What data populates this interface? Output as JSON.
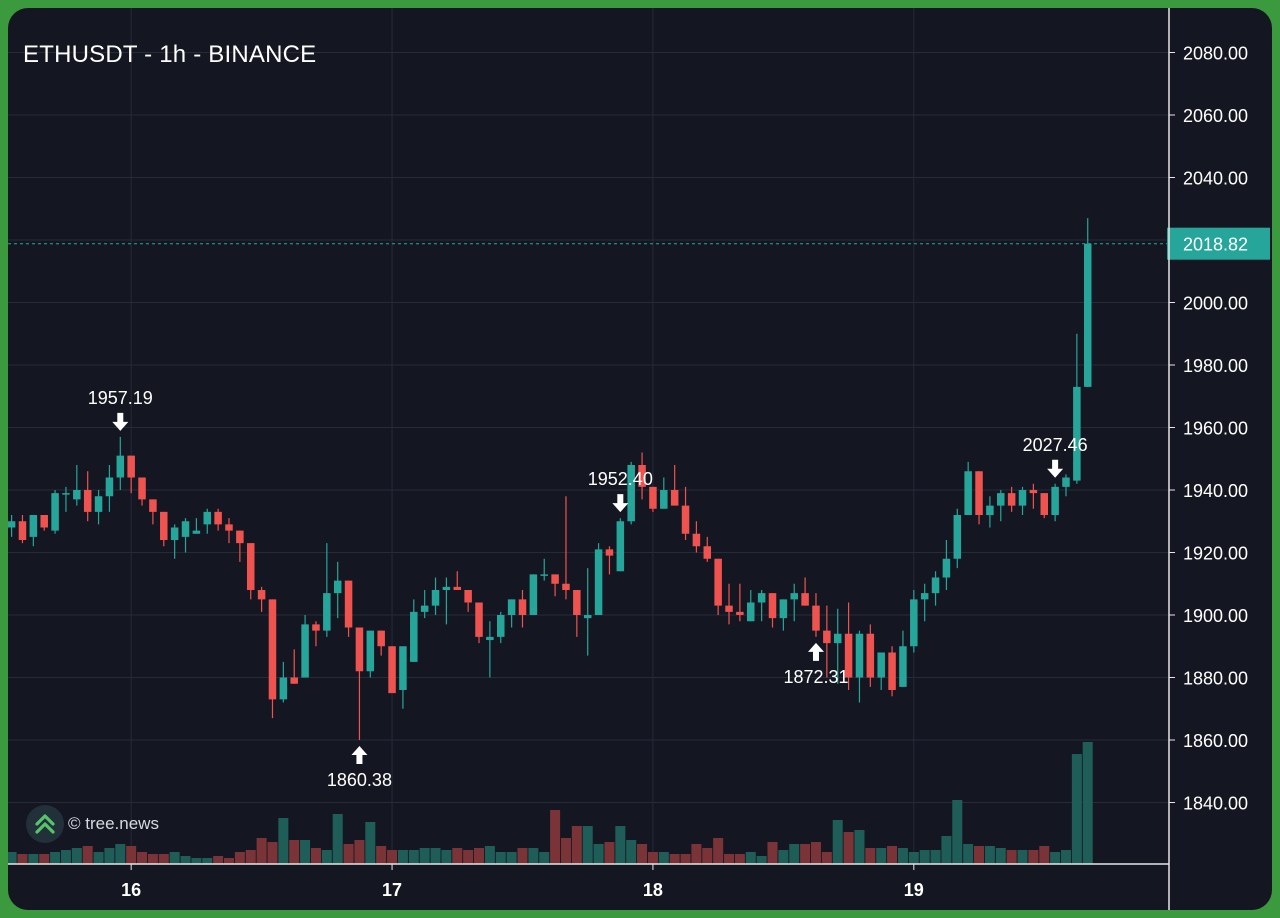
{
  "header": {
    "title": "ETHUSDT - 1h - BINANCE"
  },
  "watermark": {
    "text": "© tree.news",
    "icon": "tree-news-chevrons-icon"
  },
  "colors": {
    "background": "#141722",
    "frame": "#3c9a3e",
    "up": "#26a69a",
    "down": "#ef5350",
    "volume_up": "#1f5e58",
    "volume_down": "#7a3438",
    "grid": "#262b38",
    "text": "#ffffff",
    "price_label_bg": "#26a69a"
  },
  "chart_data": {
    "type": "candlestick",
    "title": "ETHUSDT - 1h - BINANCE",
    "interval": "1h",
    "y_axis": {
      "ticks": [
        2080,
        2060,
        2040,
        2020,
        2000,
        1980,
        1960,
        1940,
        1920,
        1900,
        1880,
        1860,
        1840
      ],
      "tick_labels": [
        "2080.00",
        "2060.00",
        "2040.00",
        "2020.00",
        "2000.00",
        "1980.00",
        "1960.00",
        "1940.00",
        "1920.00",
        "1900.00",
        "1880.00",
        "1860.00",
        "1840.00"
      ],
      "position": "right",
      "range": [
        1822,
        2090
      ]
    },
    "x_axis": {
      "ticks": [
        "16",
        "17",
        "18",
        "19"
      ],
      "tick_index": [
        11,
        35,
        59,
        83
      ]
    },
    "last_price": {
      "value": 2018.82,
      "label": "2018.82"
    },
    "annotations": [
      {
        "label": "1957.19",
        "type": "high",
        "index": 10
      },
      {
        "label": "1860.38",
        "type": "low",
        "index": 32
      },
      {
        "label": "1952.40",
        "type": "high",
        "index": 56
      },
      {
        "label": "1872.31",
        "type": "low",
        "index": 74
      },
      {
        "label": "2027.46",
        "type": "high",
        "index": 96
      }
    ],
    "candles": [
      [
        1928,
        1932,
        1925,
        1930
      ],
      [
        1930,
        1932,
        1923,
        1924
      ],
      [
        1925,
        1932,
        1922,
        1932
      ],
      [
        1932,
        1932,
        1927,
        1928
      ],
      [
        1927,
        1940,
        1926,
        1939
      ],
      [
        1939,
        1941,
        1933,
        1939
      ],
      [
        1937,
        1948,
        1935,
        1940
      ],
      [
        1940,
        1946,
        1930,
        1933
      ],
      [
        1933,
        1940,
        1929,
        1938
      ],
      [
        1938,
        1948,
        1933,
        1944
      ],
      [
        1944,
        1957,
        1940,
        1951
      ],
      [
        1951,
        1951,
        1939,
        1944
      ],
      [
        1944,
        1944,
        1935,
        1937
      ],
      [
        1937,
        1937,
        1929,
        1933
      ],
      [
        1933,
        1933,
        1922,
        1924
      ],
      [
        1924,
        1929,
        1918,
        1928
      ],
      [
        1925,
        1931,
        1920,
        1930
      ],
      [
        1926,
        1931,
        1926,
        1927
      ],
      [
        1929,
        1934,
        1926,
        1933
      ],
      [
        1933,
        1934,
        1927,
        1929
      ],
      [
        1929,
        1931,
        1923,
        1927
      ],
      [
        1927,
        1927,
        1917,
        1923
      ],
      [
        1923,
        1923,
        1905,
        1908
      ],
      [
        1908,
        1909,
        1901,
        1905
      ],
      [
        1905,
        1905,
        1867,
        1873
      ],
      [
        1873,
        1885,
        1872,
        1880
      ],
      [
        1880,
        1889,
        1878,
        1878
      ],
      [
        1880,
        1900,
        1880,
        1897
      ],
      [
        1897,
        1898,
        1890,
        1895
      ],
      [
        1895,
        1923,
        1893,
        1907
      ],
      [
        1907,
        1917,
        1899,
        1911
      ],
      [
        1911,
        1911,
        1893,
        1896
      ],
      [
        1896,
        1896,
        1860,
        1882
      ],
      [
        1882,
        1895,
        1880,
        1895
      ],
      [
        1895,
        1895,
        1887,
        1890
      ],
      [
        1890,
        1890,
        1876,
        1875
      ],
      [
        1876,
        1888,
        1870,
        1890
      ],
      [
        1885,
        1905,
        1885,
        1901
      ],
      [
        1901,
        1908,
        1899,
        1903
      ],
      [
        1903,
        1912,
        1900,
        1908
      ],
      [
        1908,
        1912,
        1897,
        1909
      ],
      [
        1909,
        1914,
        1908,
        1908
      ],
      [
        1908,
        1908,
        1901,
        1904
      ],
      [
        1904,
        1904,
        1891,
        1893
      ],
      [
        1892,
        1898,
        1880,
        1893
      ],
      [
        1893,
        1901,
        1891,
        1900
      ],
      [
        1900,
        1905,
        1896,
        1905
      ],
      [
        1905,
        1908,
        1896,
        1900
      ],
      [
        1900,
        1913,
        1900,
        1913
      ],
      [
        1913,
        1918,
        1911,
        1913
      ],
      [
        1913,
        1913,
        1906,
        1910
      ],
      [
        1910,
        1938,
        1905,
        1908
      ],
      [
        1908,
        1908,
        1893,
        1900
      ],
      [
        1899,
        1915,
        1887,
        1900
      ],
      [
        1900,
        1923,
        1900,
        1921
      ],
      [
        1921,
        1922,
        1913,
        1919
      ],
      [
        1914,
        1931,
        1914,
        1930
      ],
      [
        1930,
        1949,
        1929,
        1948
      ],
      [
        1948,
        1952,
        1937,
        1941
      ],
      [
        1941,
        1941,
        1933,
        1934
      ],
      [
        1934,
        1944,
        1934,
        1940
      ],
      [
        1940,
        1948,
        1937,
        1935
      ],
      [
        1935,
        1941,
        1924,
        1926
      ],
      [
        1926,
        1930,
        1920,
        1922
      ],
      [
        1922,
        1925,
        1917,
        1918
      ],
      [
        1918,
        1918,
        1900,
        1903
      ],
      [
        1903,
        1910,
        1897,
        1901
      ],
      [
        1901,
        1910,
        1898,
        1900
      ],
      [
        1898,
        1908,
        1898,
        1904
      ],
      [
        1904,
        1908,
        1898,
        1907
      ],
      [
        1907,
        1907,
        1896,
        1899
      ],
      [
        1899,
        1905,
        1895,
        1905
      ],
      [
        1905,
        1910,
        1898,
        1907
      ],
      [
        1907,
        1912,
        1903,
        1903
      ],
      [
        1903,
        1907,
        1893,
        1895
      ],
      [
        1895,
        1903,
        1880,
        1891
      ],
      [
        1891,
        1902,
        1878,
        1894
      ],
      [
        1894,
        1904,
        1876,
        1880
      ],
      [
        1880,
        1895,
        1872,
        1894
      ],
      [
        1894,
        1897,
        1877,
        1880
      ],
      [
        1880,
        1886,
        1876,
        1888
      ],
      [
        1888,
        1890,
        1874,
        1876
      ],
      [
        1877,
        1895,
        1877,
        1890
      ],
      [
        1890,
        1908,
        1888,
        1905
      ],
      [
        1905,
        1910,
        1898,
        1907
      ],
      [
        1907,
        1914,
        1903,
        1912
      ],
      [
        1912,
        1924,
        1908,
        1918
      ],
      [
        1918,
        1934,
        1915,
        1932
      ],
      [
        1932,
        1949,
        1932,
        1946
      ],
      [
        1946,
        1946,
        1929,
        1932
      ],
      [
        1932,
        1938,
        1928,
        1935
      ],
      [
        1935,
        1940,
        1930,
        1939
      ],
      [
        1939,
        1941,
        1933,
        1935
      ],
      [
        1935,
        1941,
        1932,
        1940
      ],
      [
        1940,
        1942,
        1934,
        1939
      ],
      [
        1939,
        1939,
        1931,
        1932
      ],
      [
        1932,
        1942,
        1930,
        1941
      ],
      [
        1941,
        1945,
        1938,
        1944
      ],
      [
        1943,
        1990,
        1942,
        1973
      ],
      [
        1973,
        2027,
        1973,
        2018.82
      ]
    ],
    "volumes": [
      6,
      5,
      5,
      5,
      6,
      7,
      8,
      9,
      6,
      8,
      10,
      9,
      6,
      5,
      5,
      6,
      4,
      3,
      3,
      4,
      3,
      6,
      7,
      13,
      11,
      23,
      12,
      12,
      8,
      7,
      25,
      10,
      12,
      21,
      9,
      7,
      7,
      7,
      8,
      8,
      7,
      8,
      7,
      8,
      9,
      6,
      6,
      8,
      8,
      6,
      27,
      13,
      19,
      19,
      10,
      11,
      19,
      12,
      10,
      6,
      6,
      5,
      5,
      10,
      8,
      13,
      5,
      5,
      6,
      4,
      11,
      7,
      10,
      10,
      11,
      6,
      22,
      16,
      17,
      8,
      8,
      9,
      8,
      6,
      7,
      7,
      14,
      32,
      10,
      9,
      9,
      8,
      7,
      7,
      7,
      9,
      6,
      7,
      55,
      61
    ]
  }
}
